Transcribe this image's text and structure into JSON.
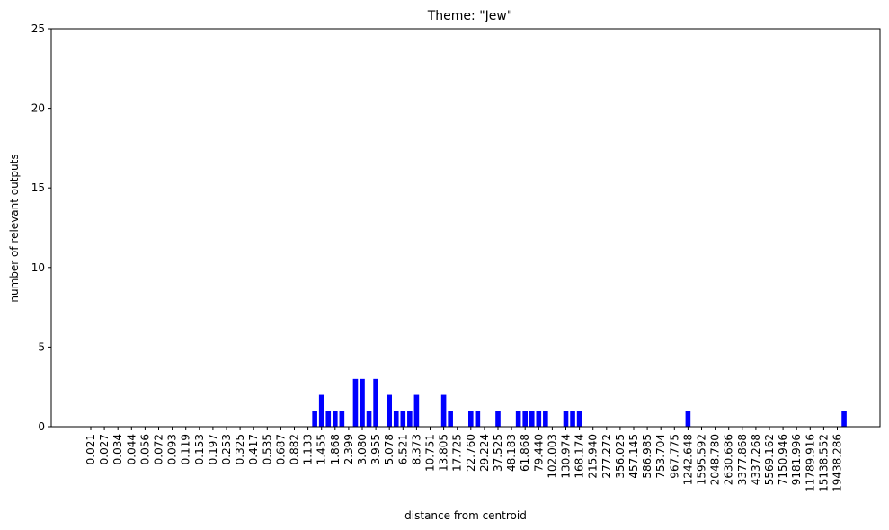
{
  "chart_data": {
    "type": "bar",
    "title": "Theme: \"Jew\"",
    "xlabel": "distance from centroid",
    "ylabel": "number of relevant outputs",
    "ylim": [
      0,
      25
    ],
    "yticks": [
      0,
      5,
      10,
      15,
      20,
      25
    ],
    "grid": false,
    "bar_color": "#0000ff",
    "bar_count": 112,
    "tick_every": 2,
    "xtick_labels": [
      "0.021",
      "0.027",
      "0.034",
      "0.044",
      "0.056",
      "0.072",
      "0.093",
      "0.119",
      "0.153",
      "0.197",
      "0.253",
      "0.325",
      "0.417",
      "0.535",
      "0.687",
      "0.882",
      "1.133",
      "1.455",
      "1.868",
      "2.399",
      "3.080",
      "3.955",
      "5.078",
      "6.521",
      "8.373",
      "10.751",
      "13.805",
      "17.725",
      "22.760",
      "29.224",
      "37.525",
      "48.183",
      "61.868",
      "79.440",
      "102.003",
      "130.974",
      "168.174",
      "215.940",
      "277.272",
      "356.025",
      "457.145",
      "586.985",
      "753.704",
      "967.775",
      "1242.648",
      "1595.592",
      "2048.780",
      "2630.686",
      "3377.868",
      "4337.268",
      "5569.162",
      "7150.946",
      "9181.996",
      "11789.916",
      "15138.552",
      "19438.286"
    ],
    "values": [
      0,
      0,
      0,
      0,
      0,
      0,
      0,
      0,
      0,
      0,
      0,
      0,
      0,
      0,
      0,
      0,
      0,
      0,
      0,
      0,
      0,
      0,
      0,
      0,
      0,
      0,
      0,
      0,
      0,
      0,
      0,
      0,
      0,
      1,
      2,
      1,
      1,
      1,
      0,
      3,
      3,
      1,
      3,
      0,
      2,
      1,
      1,
      1,
      2,
      0,
      0,
      0,
      2,
      1,
      0,
      0,
      1,
      1,
      0,
      0,
      1,
      0,
      0,
      1,
      1,
      1,
      1,
      1,
      0,
      0,
      1,
      1,
      1,
      0,
      0,
      0,
      0,
      0,
      0,
      0,
      0,
      0,
      0,
      0,
      0,
      0,
      0,
      0,
      1,
      0,
      0,
      0,
      0,
      0,
      0,
      0,
      0,
      0,
      0,
      0,
      0,
      0,
      0,
      0,
      0,
      0,
      0,
      0,
      0,
      0,
      0,
      1
    ]
  }
}
